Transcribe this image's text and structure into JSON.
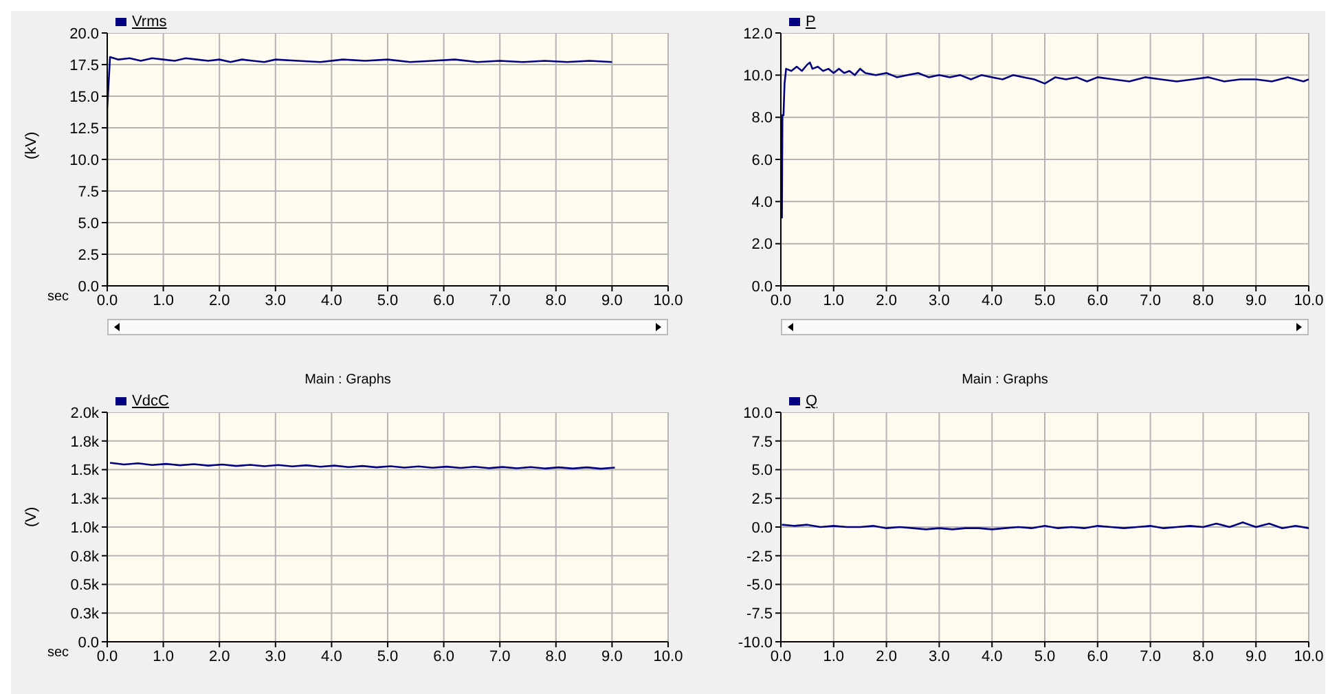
{
  "chart_data": [
    {
      "type": "line",
      "xlabel": "sec",
      "ylabel": "(kV)",
      "legend": "top left",
      "grid": true,
      "xlim": [
        0,
        10
      ],
      "xticks": [
        {
          "value": 0,
          "label": "0.0"
        },
        {
          "value": 1,
          "label": "1.0"
        },
        {
          "value": 2,
          "label": "2.0"
        },
        {
          "value": 3,
          "label": "3.0"
        },
        {
          "value": 4,
          "label": "4.0"
        },
        {
          "value": 5,
          "label": "5.0"
        },
        {
          "value": 6,
          "label": "6.0"
        },
        {
          "value": 7,
          "label": "7.0"
        },
        {
          "value": 8,
          "label": "8.0"
        },
        {
          "value": 9,
          "label": "9.0"
        },
        {
          "value": 10,
          "label": "10.0"
        }
      ],
      "ylim": [
        0,
        20
      ],
      "yticks": [
        {
          "value": 0,
          "label": "0.0"
        },
        {
          "value": 2.5,
          "label": "2.5"
        },
        {
          "value": 5,
          "label": "5.0"
        },
        {
          "value": 7.5,
          "label": "7.5"
        },
        {
          "value": 10,
          "label": "10.0"
        },
        {
          "value": 12.5,
          "label": "12.5"
        },
        {
          "value": 15,
          "label": "15.0"
        },
        {
          "value": 17.5,
          "label": "17.5"
        },
        {
          "value": 20,
          "label": "20.0"
        }
      ],
      "series": [
        {
          "name": "Vrms",
          "color": "#000080",
          "x": [
            0,
            0,
            0.05,
            0.2,
            0.4,
            0.6,
            0.8,
            1.0,
            1.2,
            1.4,
            1.6,
            1.8,
            2.0,
            2.2,
            2.4,
            2.6,
            2.8,
            3.0,
            3.4,
            3.8,
            4.2,
            4.6,
            5.0,
            5.4,
            5.8,
            6.2,
            6.6,
            7.0,
            7.4,
            7.8,
            8.2,
            8.6,
            9.0
          ],
          "values": [
            0,
            14,
            18.1,
            17.9,
            18.0,
            17.8,
            18.0,
            17.9,
            17.8,
            18.0,
            17.9,
            17.8,
            17.9,
            17.7,
            17.9,
            17.8,
            17.7,
            17.9,
            17.8,
            17.7,
            17.9,
            17.8,
            17.9,
            17.7,
            17.8,
            17.9,
            17.7,
            17.8,
            17.7,
            17.8,
            17.7,
            17.8,
            17.7
          ]
        }
      ]
    },
    {
      "type": "line",
      "legend": "top left",
      "grid": true,
      "xlim": [
        0,
        10
      ],
      "xticks": [
        {
          "value": 0,
          "label": "0.0"
        },
        {
          "value": 1,
          "label": "1.0"
        },
        {
          "value": 2,
          "label": "2.0"
        },
        {
          "value": 3,
          "label": "3.0"
        },
        {
          "value": 4,
          "label": "4.0"
        },
        {
          "value": 5,
          "label": "5.0"
        },
        {
          "value": 6,
          "label": "6.0"
        },
        {
          "value": 7,
          "label": "7.0"
        },
        {
          "value": 8,
          "label": "8.0"
        },
        {
          "value": 9,
          "label": "9.0"
        },
        {
          "value": 10,
          "label": "10.0"
        }
      ],
      "ylim": [
        0,
        12
      ],
      "yticks": [
        {
          "value": 0,
          "label": "0.0"
        },
        {
          "value": 2,
          "label": "2.0"
        },
        {
          "value": 4,
          "label": "4.0"
        },
        {
          "value": 6,
          "label": "6.0"
        },
        {
          "value": 8,
          "label": "8.0"
        },
        {
          "value": 10,
          "label": "10.0"
        },
        {
          "value": 12,
          "label": "12.0"
        }
      ],
      "series": [
        {
          "name": "P",
          "color": "#000080",
          "x": [
            0.02,
            0.03,
            0.05,
            0.07,
            0.1,
            0.2,
            0.3,
            0.4,
            0.5,
            0.55,
            0.6,
            0.7,
            0.8,
            0.9,
            1.0,
            1.1,
            1.2,
            1.3,
            1.4,
            1.5,
            1.6,
            1.8,
            2.0,
            2.2,
            2.4,
            2.6,
            2.8,
            3.0,
            3.2,
            3.4,
            3.6,
            3.8,
            4.0,
            4.2,
            4.4,
            4.6,
            4.8,
            5.0,
            5.2,
            5.4,
            5.6,
            5.8,
            6.0,
            6.3,
            6.6,
            6.9,
            7.2,
            7.5,
            7.8,
            8.1,
            8.4,
            8.7,
            9.0,
            9.3,
            9.6,
            9.9,
            10.0
          ],
          "values": [
            3.2,
            8.1,
            8.1,
            9.6,
            10.3,
            10.2,
            10.4,
            10.2,
            10.5,
            10.6,
            10.3,
            10.4,
            10.2,
            10.3,
            10.1,
            10.3,
            10.1,
            10.2,
            10.0,
            10.3,
            10.1,
            10.0,
            10.1,
            9.9,
            10.0,
            10.1,
            9.9,
            10.0,
            9.9,
            10.0,
            9.8,
            10.0,
            9.9,
            9.8,
            10.0,
            9.9,
            9.8,
            9.6,
            9.9,
            9.8,
            9.9,
            9.7,
            9.9,
            9.8,
            9.7,
            9.9,
            9.8,
            9.7,
            9.8,
            9.9,
            9.7,
            9.8,
            9.8,
            9.7,
            9.9,
            9.7,
            9.8
          ]
        }
      ]
    },
    {
      "type": "line",
      "title": "Main : Graphs",
      "xlabel": "sec",
      "ylabel": "(V)",
      "legend": "top left",
      "grid": true,
      "xlim": [
        0,
        10
      ],
      "xticks": [
        {
          "value": 0,
          "label": "0.0"
        },
        {
          "value": 1,
          "label": "1.0"
        },
        {
          "value": 2,
          "label": "2.0"
        },
        {
          "value": 3,
          "label": "3.0"
        },
        {
          "value": 4,
          "label": "4.0"
        },
        {
          "value": 5,
          "label": "5.0"
        },
        {
          "value": 6,
          "label": "6.0"
        },
        {
          "value": 7,
          "label": "7.0"
        },
        {
          "value": 8,
          "label": "8.0"
        },
        {
          "value": 9,
          "label": "9.0"
        },
        {
          "value": 10,
          "label": "10.0"
        }
      ],
      "ylim": [
        0,
        2000
      ],
      "yticks": [
        {
          "value": 0,
          "label": "0.0"
        },
        {
          "value": 250,
          "label": "0.3k"
        },
        {
          "value": 500,
          "label": "0.5k"
        },
        {
          "value": 750,
          "label": "0.8k"
        },
        {
          "value": 1000,
          "label": "1.0k"
        },
        {
          "value": 1250,
          "label": "1.3k"
        },
        {
          "value": 1500,
          "label": "1.5k"
        },
        {
          "value": 1750,
          "label": "1.8k"
        },
        {
          "value": 2000,
          "label": "2.0k"
        }
      ],
      "series": [
        {
          "name": "VdcC",
          "color": "#000080",
          "x": [
            0.05,
            0.3,
            0.55,
            0.8,
            1.05,
            1.3,
            1.55,
            1.8,
            2.05,
            2.3,
            2.55,
            2.8,
            3.05,
            3.3,
            3.55,
            3.8,
            4.05,
            4.3,
            4.55,
            4.8,
            5.05,
            5.3,
            5.55,
            5.8,
            6.05,
            6.3,
            6.55,
            6.8,
            7.05,
            7.3,
            7.55,
            7.8,
            8.05,
            8.3,
            8.55,
            8.8,
            9.05
          ],
          "values": [
            1560,
            1545,
            1555,
            1540,
            1550,
            1538,
            1548,
            1535,
            1545,
            1532,
            1542,
            1530,
            1540,
            1528,
            1538,
            1525,
            1535,
            1522,
            1532,
            1520,
            1530,
            1518,
            1528,
            1516,
            1526,
            1515,
            1525,
            1513,
            1523,
            1512,
            1522,
            1510,
            1520,
            1510,
            1520,
            1508,
            1518
          ]
        }
      ]
    },
    {
      "type": "line",
      "title": "Main : Graphs",
      "legend": "top left",
      "grid": true,
      "xlim": [
        0,
        10
      ],
      "xticks": [
        {
          "value": 0,
          "label": "0.0"
        },
        {
          "value": 1,
          "label": "1.0"
        },
        {
          "value": 2,
          "label": "2.0"
        },
        {
          "value": 3,
          "label": "3.0"
        },
        {
          "value": 4,
          "label": "4.0"
        },
        {
          "value": 5,
          "label": "5.0"
        },
        {
          "value": 6,
          "label": "6.0"
        },
        {
          "value": 7,
          "label": "7.0"
        },
        {
          "value": 8,
          "label": "8.0"
        },
        {
          "value": 9,
          "label": "9.0"
        },
        {
          "value": 10,
          "label": "10.0"
        }
      ],
      "ylim": [
        -10,
        10
      ],
      "yticks": [
        {
          "value": -10,
          "label": "-10.0"
        },
        {
          "value": -7.5,
          "label": "-7.5"
        },
        {
          "value": -5,
          "label": "-5.0"
        },
        {
          "value": -2.5,
          "label": "-2.5"
        },
        {
          "value": 0,
          "label": "0.0"
        },
        {
          "value": 2.5,
          "label": "2.5"
        },
        {
          "value": 5,
          "label": "5.0"
        },
        {
          "value": 7.5,
          "label": "7.5"
        },
        {
          "value": 10,
          "label": "10.0"
        }
      ],
      "series": [
        {
          "name": "Q",
          "color": "#000080",
          "x": [
            0.02,
            0.25,
            0.5,
            0.75,
            1.0,
            1.25,
            1.5,
            1.75,
            2.0,
            2.25,
            2.5,
            2.75,
            3.0,
            3.25,
            3.5,
            3.75,
            4.0,
            4.25,
            4.5,
            4.75,
            5.0,
            5.25,
            5.5,
            5.75,
            6.0,
            6.25,
            6.5,
            6.75,
            7.0,
            7.25,
            7.5,
            7.75,
            8.0,
            8.25,
            8.5,
            8.75,
            9.0,
            9.25,
            9.5,
            9.75,
            10.0
          ],
          "values": [
            0.2,
            0.1,
            0.2,
            0.0,
            0.1,
            0.0,
            0.0,
            0.1,
            -0.1,
            0.0,
            -0.1,
            -0.2,
            -0.1,
            -0.2,
            -0.1,
            -0.1,
            -0.2,
            -0.1,
            0.0,
            -0.1,
            0.1,
            -0.1,
            0.0,
            -0.1,
            0.1,
            0.0,
            -0.1,
            0.0,
            0.1,
            -0.1,
            0.0,
            0.1,
            0.0,
            0.3,
            0.0,
            0.4,
            0.0,
            0.3,
            -0.1,
            0.1,
            -0.1
          ]
        }
      ]
    }
  ]
}
